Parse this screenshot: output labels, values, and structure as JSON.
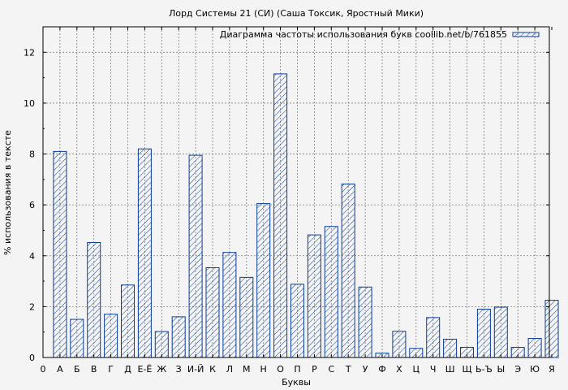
{
  "chart_data": {
    "type": "bar",
    "title": "Лорд Системы 21 (СИ) (Саша Токсик, Яростный Мики)",
    "xlabel": "Буквы",
    "ylabel": "% использования в тексте",
    "legend": {
      "label": "Диаграмма частоты использования букв coollib.net/b/761855",
      "placement": "top-right"
    },
    "grid": true,
    "ylim": [
      0,
      13
    ],
    "yticks": [
      0,
      2,
      4,
      6,
      8,
      10,
      12
    ],
    "x_start_label": "0",
    "categories": [
      "А",
      "Б",
      "В",
      "Г",
      "Д",
      "Е-Ё",
      "Ж",
      "З",
      "И-Й",
      "К",
      "Л",
      "М",
      "Н",
      "О",
      "П",
      "Р",
      "С",
      "Т",
      "У",
      "Ф",
      "Х",
      "Ц",
      "Ч",
      "Ш",
      "Щ",
      "Ь-Ъ",
      "Ы",
      "Э",
      "Ю",
      "Я"
    ],
    "values": [
      8.1,
      1.5,
      4.52,
      1.7,
      2.85,
      8.2,
      1.02,
      1.6,
      7.95,
      3.53,
      4.13,
      3.15,
      6.05,
      11.15,
      2.88,
      4.82,
      5.15,
      6.82,
      2.77,
      0.17,
      1.03,
      0.36,
      1.57,
      0.72,
      0.4,
      1.9,
      1.98,
      0.4,
      0.75,
      2.25
    ],
    "colors": {
      "bar_stroke": "#0a3d9c",
      "bar_hatch": "#0a3d9c",
      "grid": "#808080",
      "plot_bg": "#f4f4f4"
    }
  }
}
